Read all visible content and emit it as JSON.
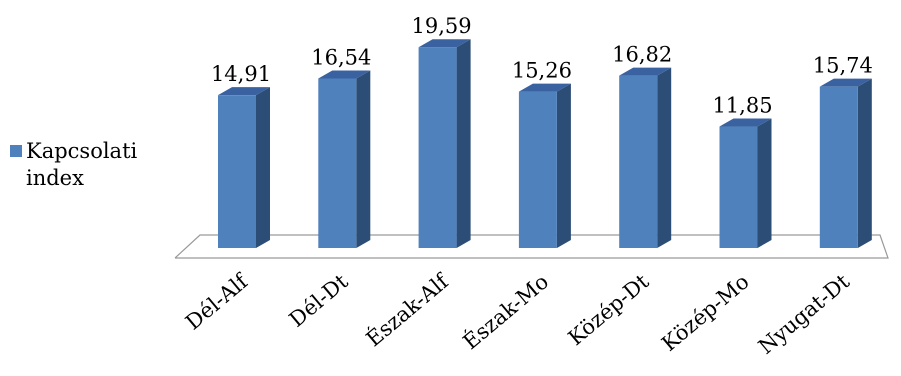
{
  "chart_data": {
    "type": "bar",
    "categories": [
      "Dél-Alf",
      "Dél-Dt",
      "Észak-Alf",
      "Észak-Mo",
      "Közép-Dt",
      "Közép-Mo",
      "Nyugat-Dt"
    ],
    "value_labels": [
      "14,91",
      "16,54",
      "19,59",
      "15,26",
      "16,82",
      "11,85",
      "15,74"
    ],
    "series": [
      {
        "name": "Kapcsolati index",
        "values": [
          14.91,
          16.54,
          19.59,
          15.26,
          16.82,
          11.85,
          15.74
        ]
      }
    ],
    "ylim": [
      0,
      20
    ],
    "legend_placement": "left",
    "grid": false,
    "three_d": true
  },
  "colors": {
    "bar_front": "#4f81bd",
    "bar_side": "#2c4d75",
    "bar_top": "#3a62a0",
    "floor_line": "#9a9a9a"
  }
}
